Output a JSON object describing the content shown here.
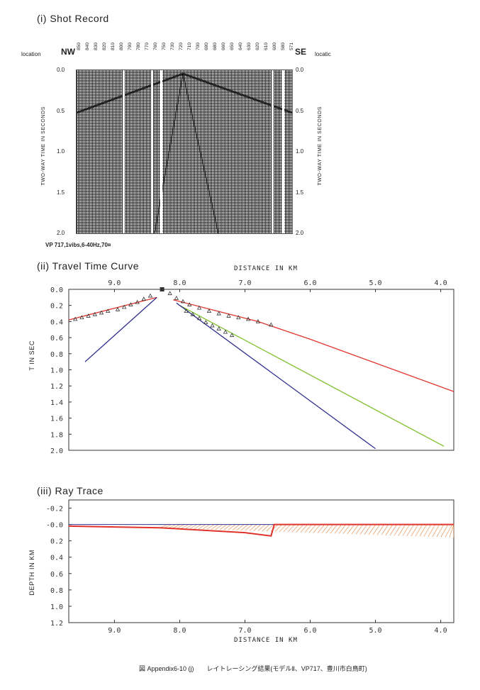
{
  "shot_record": {
    "section_title": "(i) Shot Record",
    "left_location_label": "location",
    "right_location_label": "locatic",
    "dir_left": "NW",
    "dir_right": "SE",
    "station_labels": [
      "850",
      "840",
      "830",
      "820",
      "810",
      "800",
      "790",
      "780",
      "770",
      "760",
      "750",
      "730",
      "720",
      "710",
      "700",
      "690",
      "680",
      "660",
      "650",
      "640",
      "630",
      "620",
      "610",
      "600",
      "580",
      "571"
    ],
    "time_ticks": [
      "0.0",
      "0.5",
      "1.0",
      "1.5",
      "2.0"
    ],
    "axis_label": "TWO-WAY TIME IN SECONDS",
    "source_note": "VP 717,1vibs,6-40Hz,70¤"
  },
  "travel_time": {
    "section_title": "(ii) Travel Time Curve",
    "x_axis_title": "DISTANCE IN KM",
    "y_axis_title": "T IN SEC",
    "x_ticks": [
      "9.0",
      "8.0",
      "7.0",
      "6.0",
      "5.0",
      "4.0"
    ],
    "y_ticks": [
      "0.0",
      "0.2",
      "0.4",
      "0.6",
      "0.8",
      "1.0",
      "1.2",
      "1.4",
      "1.6",
      "1.8",
      "2.0"
    ]
  },
  "ray_trace": {
    "section_title": "(iii) Ray Trace",
    "x_axis_title": "DISTANCE IN KM",
    "y_axis_title": "DEPTH IN KM",
    "x_ticks": [
      "9.0",
      "8.0",
      "7.0",
      "6.0",
      "5.0",
      "4.0"
    ],
    "y_ticks": [
      "-0.2",
      "-0.0",
      "0.2",
      "0.4",
      "0.6",
      "0.8",
      "1.0",
      "1.2"
    ]
  },
  "caption": "図 Appendix6-10 (j)　　レイトレーシング結果(モデルⅡ、VP717、豊川市白鳥町)",
  "colors": {
    "red": "#e0332b",
    "blue": "#2f2f8f",
    "green": "#7fbf2f",
    "hatch": "#e8833a"
  },
  "chart_data": [
    {
      "type": "line",
      "title": "(ii) Travel Time Curve",
      "xlabel": "DISTANCE IN KM",
      "ylabel": "T IN SEC",
      "xlim": [
        9.7,
        3.8
      ],
      "ylim": [
        2.0,
        0.0
      ],
      "source_x": 8.27,
      "series": [
        {
          "color": "red",
          "x": [
            9.7,
            8.35
          ],
          "y": [
            0.38,
            0.1
          ]
        },
        {
          "color": "blue",
          "x": [
            9.45,
            8.35
          ],
          "y": [
            0.9,
            0.1
          ]
        },
        {
          "color": "red",
          "x": [
            8.1,
            6.8,
            6.0,
            3.8
          ],
          "y": [
            0.13,
            0.4,
            0.62,
            1.27
          ]
        },
        {
          "color": "green",
          "x": [
            8.0,
            3.95
          ],
          "y": [
            0.2,
            1.95
          ]
        },
        {
          "color": "blue",
          "x": [
            8.05,
            5.0
          ],
          "y": [
            0.17,
            1.98
          ]
        }
      ],
      "observed_picks": [
        {
          "x": 9.6,
          "y": 0.37
        },
        {
          "x": 9.5,
          "y": 0.35
        },
        {
          "x": 9.4,
          "y": 0.33
        },
        {
          "x": 9.3,
          "y": 0.31
        },
        {
          "x": 9.2,
          "y": 0.29
        },
        {
          "x": 9.1,
          "y": 0.27
        },
        {
          "x": 8.95,
          "y": 0.25
        },
        {
          "x": 8.85,
          "y": 0.22
        },
        {
          "x": 8.75,
          "y": 0.19
        },
        {
          "x": 8.65,
          "y": 0.16
        },
        {
          "x": 8.55,
          "y": 0.12
        },
        {
          "x": 8.45,
          "y": 0.08
        },
        {
          "x": 8.15,
          "y": 0.05
        },
        {
          "x": 8.05,
          "y": 0.11
        },
        {
          "x": 7.95,
          "y": 0.15
        },
        {
          "x": 7.85,
          "y": 0.19
        },
        {
          "x": 7.7,
          "y": 0.23
        },
        {
          "x": 7.55,
          "y": 0.27
        },
        {
          "x": 7.4,
          "y": 0.3
        },
        {
          "x": 7.25,
          "y": 0.33
        },
        {
          "x": 7.1,
          "y": 0.35
        },
        {
          "x": 6.95,
          "y": 0.37
        },
        {
          "x": 6.8,
          "y": 0.4
        },
        {
          "x": 6.6,
          "y": 0.44
        },
        {
          "x": 7.9,
          "y": 0.27
        },
        {
          "x": 7.8,
          "y": 0.31
        },
        {
          "x": 7.7,
          "y": 0.36
        },
        {
          "x": 7.6,
          "y": 0.41
        },
        {
          "x": 7.5,
          "y": 0.45
        },
        {
          "x": 7.4,
          "y": 0.49
        },
        {
          "x": 7.3,
          "y": 0.53
        },
        {
          "x": 7.2,
          "y": 0.57
        }
      ]
    },
    {
      "type": "line",
      "title": "(iii) Ray Trace",
      "xlabel": "DISTANCE IN KM",
      "ylabel": "DEPTH IN KM",
      "xlim": [
        9.7,
        3.8
      ],
      "ylim": [
        -0.3,
        1.2
      ],
      "series": [
        {
          "color": "blue",
          "x": [
            9.7,
            8.3,
            3.8
          ],
          "y": [
            0.0,
            0.0,
            0.0
          ]
        },
        {
          "color": "red",
          "x": [
            9.7,
            8.3,
            7.0,
            6.6,
            6.55,
            3.8
          ],
          "y": [
            0.02,
            0.04,
            0.1,
            0.14,
            0.0,
            0.0
          ]
        }
      ],
      "hatched_region": {
        "x": [
          8.3,
          3.8
        ],
        "top": 0.0,
        "bottom_left": 0.04,
        "bottom_right": 0.16
      }
    }
  ]
}
